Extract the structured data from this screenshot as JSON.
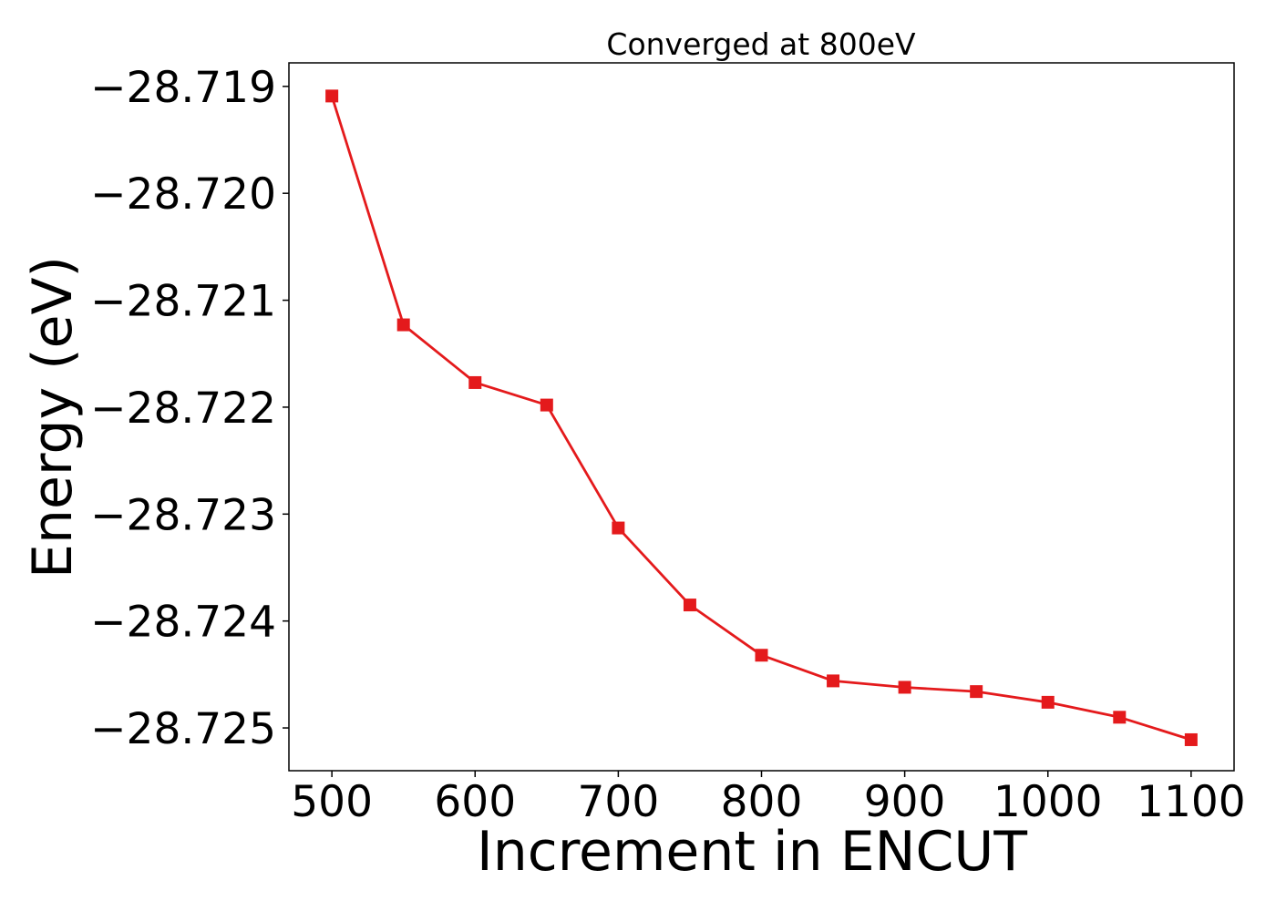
{
  "chart_data": {
    "type": "line",
    "title": "Converged at 800eV",
    "xlabel": "Increment in ENCUT",
    "ylabel": "Energy (eV)",
    "x": [
      500,
      550,
      600,
      650,
      700,
      750,
      800,
      850,
      900,
      950,
      1000,
      1050,
      1100
    ],
    "series": [
      {
        "values": [
          -28.71909,
          -28.72123,
          -28.72177,
          -28.72198,
          -28.72313,
          -28.72385,
          -28.72432,
          -28.72456,
          -28.72462,
          -28.72466,
          -28.72476,
          -28.7249,
          -28.72511
        ],
        "color": "#e41a1c",
        "marker": "square"
      }
    ],
    "xticks": [
      500,
      600,
      700,
      800,
      900,
      1000,
      1100
    ],
    "xtick_labels": [
      "500",
      "600",
      "700",
      "800",
      "900",
      "1000",
      "1100"
    ],
    "yticks": [
      -28.719,
      -28.72,
      -28.721,
      -28.722,
      -28.723,
      -28.724,
      -28.725
    ],
    "ytick_labels": [
      "−28.719",
      "−28.720",
      "−28.721",
      "−28.722",
      "−28.723",
      "−28.724",
      "−28.725"
    ],
    "xlim": [
      470,
      1130
    ],
    "ylim": [
      -28.7254,
      -28.71878
    ],
    "grid": false,
    "legend": false
  }
}
